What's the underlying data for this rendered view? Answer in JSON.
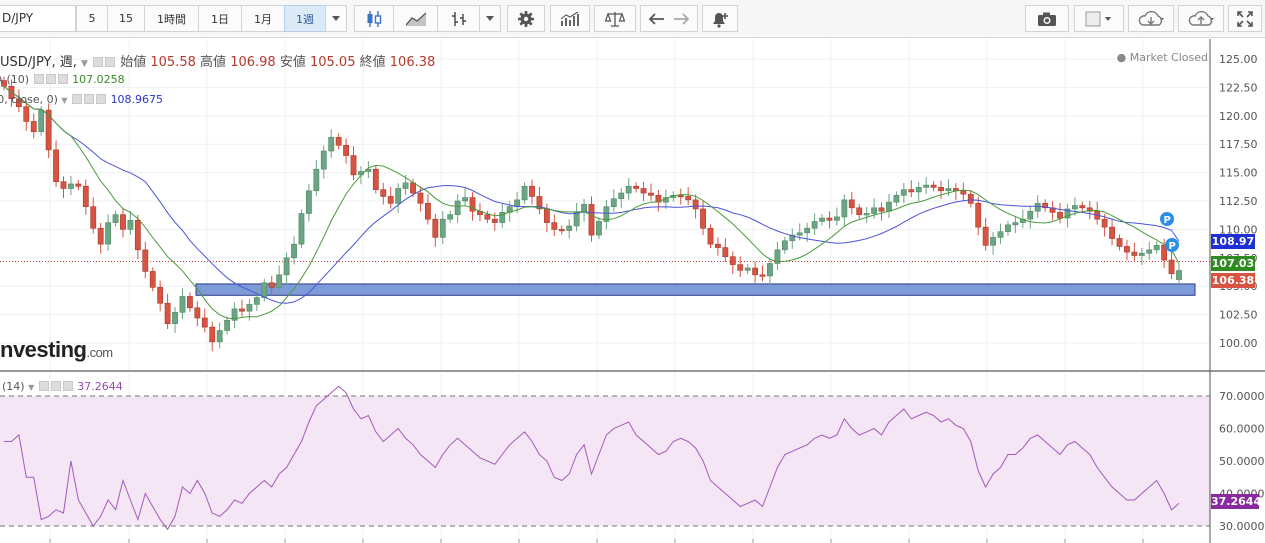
{
  "toolbar": {
    "symbol": "D/JPY",
    "intervals": [
      "5",
      "15",
      "1時間",
      "1日",
      "1月",
      "1週"
    ],
    "active_interval": "1週"
  },
  "legend": {
    "main": "USD/JPY, 週,",
    "open_label": "始値",
    "open": "105.58",
    "high_label": "高値",
    "high": "106.98",
    "low_label": "安値",
    "low": "105.05",
    "close_label": "終値",
    "close": "106.38",
    "ma1_label": "MA (10)",
    "ma1_value": "107.0258",
    "ma2_label": "(20, close, 0)",
    "ma2_value": "108.9675",
    "rsi_label": "(14)",
    "rsi_value": "37.2644"
  },
  "status": "Market Closed",
  "logo": {
    "main": "nvesting",
    "suffix": ".com"
  },
  "price_tags": {
    "ma20": "108.97",
    "ma10": "107.03",
    "close": "106.38",
    "rsi": "37.2644"
  },
  "colors": {
    "up": "#6ca583",
    "down": "#d75442",
    "ma10": "#4a9a3a",
    "ma20": "#4b55d8",
    "rsi": "#a35ab9",
    "support_zone": "#7f9ad8"
  },
  "chart_data": [
    {
      "type": "candlestick",
      "y_ticks": [
        "125.00",
        "122.50",
        "120.00",
        "117.50",
        "115.00",
        "112.50",
        "110.00",
        "107.50",
        "105.00",
        "102.50",
        "100.00"
      ],
      "ylim": [
        98.5,
        126.5
      ],
      "close_series": [
        122.6,
        121.5,
        120.8,
        119.5,
        118.6,
        120.5,
        117.0,
        114.2,
        113.6,
        114.0,
        113.8,
        112.0,
        110.1,
        108.7,
        110.6,
        111.3,
        110.0,
        110.8,
        108.2,
        106.3,
        104.9,
        103.5,
        101.7,
        102.7,
        104.1,
        103.1,
        102.2,
        101.4,
        100.1,
        101.1,
        102.0,
        103.0,
        102.8,
        103.4,
        104.0,
        105.3,
        104.9,
        106.0,
        107.5,
        108.7,
        111.4,
        113.4,
        115.3,
        116.9,
        118.1,
        117.4,
        116.5,
        114.8,
        115.1,
        115.3,
        113.5,
        112.9,
        112.3,
        113.6,
        114.1,
        113.2,
        112.3,
        110.9,
        109.3,
        110.9,
        111.3,
        112.5,
        112.8,
        111.6,
        111.3,
        110.9,
        110.6,
        111.5,
        112.0,
        112.6,
        113.8,
        112.9,
        111.8,
        110.6,
        110.0,
        109.9,
        110.3,
        111.5,
        112.2,
        109.5,
        110.7,
        112.0,
        112.7,
        113.2,
        113.8,
        113.6,
        113.2,
        113.0,
        112.4,
        112.8,
        113.0,
        112.9,
        112.6,
        111.8,
        110.1,
        108.7,
        108.4,
        107.6,
        106.9,
        106.4,
        106.6,
        106.0,
        105.9,
        107.0,
        108.2,
        109.0,
        109.5,
        109.7,
        110.1,
        110.7,
        111.0,
        110.8,
        111.1,
        112.6,
        111.9,
        111.3,
        111.4,
        111.9,
        111.6,
        112.4,
        113.0,
        113.5,
        113.3,
        113.7,
        113.9,
        113.7,
        113.4,
        113.6,
        113.4,
        113.1,
        112.3,
        110.2,
        108.6,
        109.3,
        109.8,
        110.4,
        110.6,
        110.9,
        111.6,
        112.3,
        111.9,
        111.5,
        111.0,
        111.8,
        112.1,
        111.9,
        111.6,
        110.9,
        110.2,
        109.2,
        108.5,
        108.0,
        107.7,
        107.9,
        108.2,
        108.6,
        107.3,
        106.1,
        106.4
      ],
      "last_candle": {
        "open": 105.58,
        "high": 106.98,
        "low": 105.05,
        "close": 106.38
      },
      "ma_10": 107.0258,
      "ma_20": 108.9675,
      "support_zone": [
        104.2,
        105.2
      ]
    },
    {
      "type": "line",
      "name": "RSI (14)",
      "y_ticks": [
        "70.0000",
        "60.0000",
        "50.0000",
        "40.0000",
        "30.0000"
      ],
      "ylim": [
        26,
        75
      ],
      "guide_lines": [
        70,
        30
      ],
      "values": [
        56,
        56,
        58,
        45,
        45,
        32,
        33,
        35,
        34,
        50,
        38,
        34,
        30,
        33,
        38,
        35,
        44,
        38,
        32,
        40,
        36,
        32,
        29,
        33,
        42,
        40,
        44,
        40,
        34,
        33,
        35,
        38,
        37,
        40,
        42,
        44,
        42,
        46,
        48,
        52,
        56,
        62,
        67,
        69,
        71,
        73,
        71,
        66,
        63,
        64,
        59,
        56,
        58,
        60,
        57,
        55,
        52,
        50,
        48,
        52,
        55,
        57,
        55,
        53,
        51,
        50,
        49,
        52,
        55,
        57,
        59,
        56,
        52,
        50,
        45,
        44,
        46,
        52,
        55,
        46,
        52,
        58,
        60,
        61,
        62,
        58,
        56,
        54,
        52,
        53,
        56,
        57,
        56,
        54,
        50,
        44,
        42,
        40,
        38,
        36,
        37,
        38,
        36,
        42,
        48,
        52,
        53,
        54,
        55,
        57,
        58,
        57,
        58,
        63,
        60,
        58,
        59,
        60,
        58,
        62,
        64,
        66,
        63,
        64,
        65,
        64,
        62,
        63,
        61,
        60,
        56,
        47,
        42,
        46,
        48,
        52,
        52,
        54,
        57,
        58,
        56,
        54,
        52,
        55,
        56,
        54,
        52,
        48,
        45,
        42,
        40,
        38,
        38,
        40,
        42,
        44,
        40,
        35,
        37
      ]
    }
  ]
}
